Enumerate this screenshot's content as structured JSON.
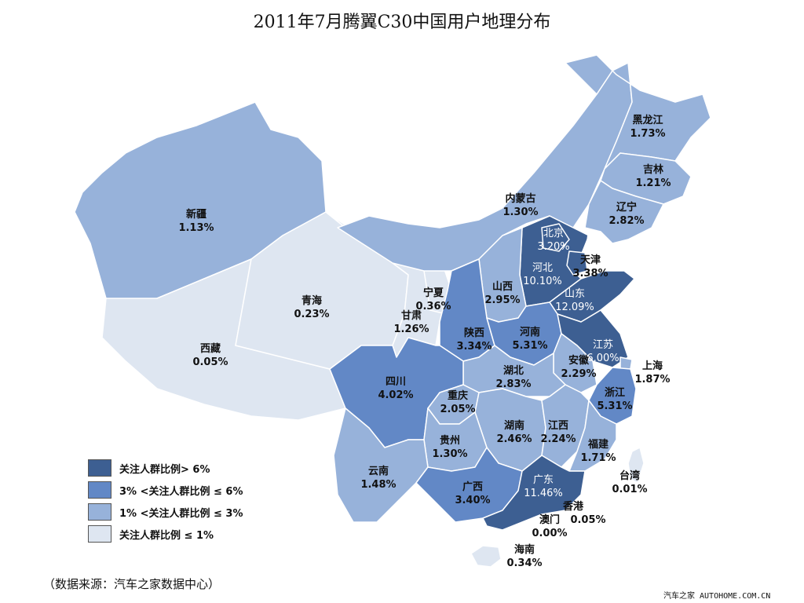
{
  "title": "2011年7月腾翼C30中国用户地理分布",
  "colors": {
    "level4": "#3d5f92",
    "level3": "#6288c6",
    "level2": "#97b2da",
    "level1": "#dee6f1",
    "border": "#ffffff",
    "outline": "#6f87b0"
  },
  "legend": [
    {
      "text": "关注人群比例> 6%",
      "color": "#3d5f92"
    },
    {
      "text": "3% <关注人群比例 ≤ 6%",
      "color": "#6288c6"
    },
    {
      "text": "1% <关注人群比例 ≤ 3%",
      "color": "#97b2da"
    },
    {
      "text": "关注人群比例 ≤ 1%",
      "color": "#dee6f1"
    }
  ],
  "provinces": [
    {
      "name": "黑龙江",
      "value": "1.73%"
    },
    {
      "name": "吉林",
      "value": "1.21%"
    },
    {
      "name": "辽宁",
      "value": "2.82%"
    },
    {
      "name": "内蒙古",
      "value": "1.30%"
    },
    {
      "name": "北京",
      "value": "3.20%"
    },
    {
      "name": "天津",
      "value": "3.38%"
    },
    {
      "name": "河北",
      "value": "10.10%"
    },
    {
      "name": "山西",
      "value": "2.95%"
    },
    {
      "name": "山东",
      "value": "12.09%"
    },
    {
      "name": "新疆",
      "value": "1.13%"
    },
    {
      "name": "青海",
      "value": "0.23%"
    },
    {
      "name": "宁夏",
      "value": "0.36%"
    },
    {
      "name": "甘肃",
      "value": "1.26%"
    },
    {
      "name": "西藏",
      "value": "0.05%"
    },
    {
      "name": "陕西",
      "value": "3.34%"
    },
    {
      "name": "河南",
      "value": "5.31%"
    },
    {
      "name": "江苏",
      "value": "6.00%"
    },
    {
      "name": "上海",
      "value": "1.87%"
    },
    {
      "name": "安徽",
      "value": "2.29%"
    },
    {
      "name": "四川",
      "value": "4.02%"
    },
    {
      "name": "湖北",
      "value": "2.83%"
    },
    {
      "name": "重庆",
      "value": "2.05%"
    },
    {
      "name": "浙江",
      "value": "5.31%"
    },
    {
      "name": "湖南",
      "value": "2.46%"
    },
    {
      "name": "江西",
      "value": "2.24%"
    },
    {
      "name": "贵州",
      "value": "1.30%"
    },
    {
      "name": "福建",
      "value": "1.71%"
    },
    {
      "name": "云南",
      "value": "1.48%"
    },
    {
      "name": "广西",
      "value": "3.40%"
    },
    {
      "name": "广东",
      "value": "11.46%"
    },
    {
      "name": "台湾",
      "value": "0.01%"
    },
    {
      "name": "香港",
      "value": "0.05%"
    },
    {
      "name": "澳门",
      "value": "0.00%"
    },
    {
      "name": "海南",
      "value": "0.34%"
    }
  ],
  "source": "（数据来源：汽车之家数据中心）",
  "watermark": "汽车之家  AUTOHOME.COM.CN"
}
